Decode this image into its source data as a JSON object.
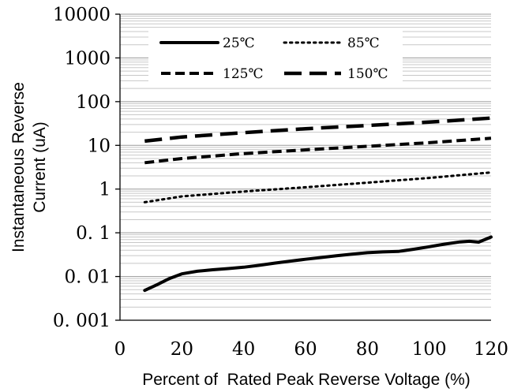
{
  "chart_data": {
    "type": "line",
    "title": "",
    "xlabel": "Percent of  Rated Peak Reverse Voltage (%)",
    "ylabel_lines": [
      "Instantaneous Reverse",
      "Current (uA)"
    ],
    "xlim": [
      0,
      120
    ],
    "ylim": [
      0.001,
      10000
    ],
    "y_scale": "log",
    "x_ticks": [
      0,
      20,
      40,
      60,
      80,
      100,
      120
    ],
    "x_tick_labels": [
      "0",
      "20",
      "40",
      "60",
      "80",
      "100",
      "120"
    ],
    "y_ticks": [
      0.001,
      0.01,
      0.1,
      1,
      10,
      100,
      1000,
      10000
    ],
    "y_tick_labels": [
      "0. 001",
      "0. 01",
      "0. 1",
      "1",
      "10",
      "100",
      "1000",
      "10000"
    ],
    "grid": true,
    "legend_position": "top",
    "series": [
      {
        "name": "25℃",
        "style": "solid",
        "x": [
          8,
          12,
          16,
          20,
          25,
          30,
          35,
          40,
          45,
          50,
          55,
          60,
          65,
          70,
          75,
          80,
          85,
          90,
          95,
          100,
          105,
          110,
          113,
          116,
          120
        ],
        "y": [
          0.0048,
          0.0065,
          0.009,
          0.0115,
          0.0132,
          0.0143,
          0.0152,
          0.0163,
          0.018,
          0.0202,
          0.0225,
          0.0248,
          0.0272,
          0.0298,
          0.0325,
          0.035,
          0.0365,
          0.0375,
          0.042,
          0.048,
          0.055,
          0.062,
          0.064,
          0.061,
          0.08
        ]
      },
      {
        "name": "85℃",
        "style": "dotted",
        "x": [
          8,
          20,
          40,
          60,
          80,
          100,
          120
        ],
        "y": [
          0.5,
          0.68,
          0.88,
          1.1,
          1.4,
          1.8,
          2.4
        ]
      },
      {
        "name": "125℃",
        "style": "short-dash",
        "x": [
          8,
          20,
          40,
          60,
          80,
          100,
          120
        ],
        "y": [
          4.0,
          5.0,
          6.5,
          7.9,
          9.5,
          11.5,
          14.5
        ]
      },
      {
        "name": "150℃",
        "style": "long-dash",
        "x": [
          8,
          20,
          40,
          60,
          80,
          100,
          120
        ],
        "y": [
          12.5,
          15.5,
          19.5,
          24.0,
          28.5,
          34.0,
          42.0
        ]
      }
    ]
  }
}
